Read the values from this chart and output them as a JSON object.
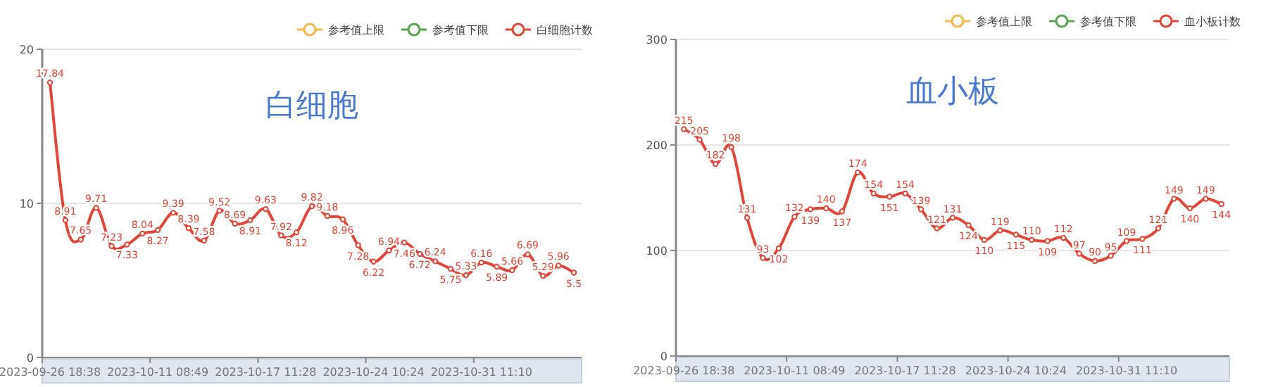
{
  "chart_data": [
    {
      "type": "line",
      "title": "白细胞",
      "legend": "top right",
      "grid": "y",
      "marker": "circle",
      "data_labels": true,
      "categories": [
        "2023-09-26 18:38",
        null,
        null,
        null,
        null,
        null,
        null,
        "2023-10-11 08:49",
        null,
        null,
        null,
        null,
        null,
        null,
        "2023-10-17 11:28",
        null,
        null,
        null,
        null,
        null,
        null,
        "2023-10-24 10:24",
        null,
        null,
        null,
        null,
        null,
        null,
        "2023-10-31 11:10",
        null,
        null,
        null,
        null,
        null,
        null
      ],
      "ylim": [
        0,
        20
      ],
      "yticks": [
        0,
        10,
        20
      ],
      "series": [
        {
          "name": "参考值上限",
          "color": "#f2b84b",
          "values": [
            null,
            null,
            null,
            null,
            null,
            null,
            null,
            null,
            null,
            null,
            null,
            null,
            null,
            null,
            null,
            null,
            null,
            null,
            null,
            null,
            null,
            null,
            null,
            null,
            null,
            null,
            null,
            null,
            null,
            null,
            null,
            null,
            null,
            null,
            null
          ]
        },
        {
          "name": "参考值下限",
          "color": "#5aa454",
          "values": [
            null,
            null,
            null,
            null,
            null,
            null,
            null,
            null,
            null,
            null,
            null,
            null,
            null,
            null,
            null,
            null,
            null,
            null,
            null,
            null,
            null,
            null,
            null,
            null,
            null,
            null,
            null,
            null,
            null,
            null,
            null,
            null,
            null,
            null,
            null
          ]
        },
        {
          "name": "白细胞计数",
          "color": "#e0463a",
          "values": [
            17.84,
            8.91,
            7.65,
            9.71,
            7.23,
            7.33,
            8.04,
            8.27,
            9.39,
            8.39,
            7.58,
            9.52,
            8.69,
            8.91,
            9.63,
            7.92,
            8.12,
            9.82,
            9.18,
            8.96,
            7.28,
            6.22,
            6.94,
            7.46,
            6.72,
            6.24,
            5.75,
            5.33,
            6.16,
            5.89,
            5.66,
            6.69,
            5.29,
            5.96,
            5.5
          ]
        }
      ]
    },
    {
      "type": "line",
      "title": "血小板",
      "legend": "top right",
      "grid": "y",
      "marker": "circle",
      "data_labels": true,
      "categories": [
        "2023-09-26 18:38",
        null,
        null,
        null,
        null,
        null,
        null,
        "2023-10-11 08:49",
        null,
        null,
        null,
        null,
        null,
        null,
        "2023-10-17 11:28",
        null,
        null,
        null,
        null,
        null,
        null,
        "2023-10-24 10:24",
        null,
        null,
        null,
        null,
        null,
        null,
        "2023-10-31 11:10",
        null,
        null,
        null,
        null,
        null,
        null
      ],
      "ylim": [
        0,
        300
      ],
      "yticks": [
        0,
        100,
        200,
        300
      ],
      "series": [
        {
          "name": "参考值上限",
          "color": "#f2b84b",
          "values": [
            null,
            null,
            null,
            null,
            null,
            null,
            null,
            null,
            null,
            null,
            null,
            null,
            null,
            null,
            null,
            null,
            null,
            null,
            null,
            null,
            null,
            null,
            null,
            null,
            null,
            null,
            null,
            null,
            null,
            null,
            null,
            null,
            null,
            null,
            null
          ]
        },
        {
          "name": "参考值下限",
          "color": "#5aa454",
          "values": [
            null,
            null,
            null,
            null,
            null,
            null,
            null,
            null,
            null,
            null,
            null,
            null,
            null,
            null,
            null,
            null,
            null,
            null,
            null,
            null,
            null,
            null,
            null,
            null,
            null,
            null,
            null,
            null,
            null,
            null,
            null,
            null,
            null,
            null,
            null
          ]
        },
        {
          "name": "血小板计数",
          "color": "#e0463a",
          "values": [
            215,
            205,
            182,
            198,
            131,
            93,
            102,
            132,
            139,
            140,
            137,
            174,
            154,
            151,
            154,
            139,
            121,
            131,
            124,
            110,
            119,
            115,
            110,
            109,
            112,
            97,
            90,
            95,
            109,
            111,
            121,
            149,
            140,
            149,
            144
          ]
        }
      ]
    }
  ]
}
